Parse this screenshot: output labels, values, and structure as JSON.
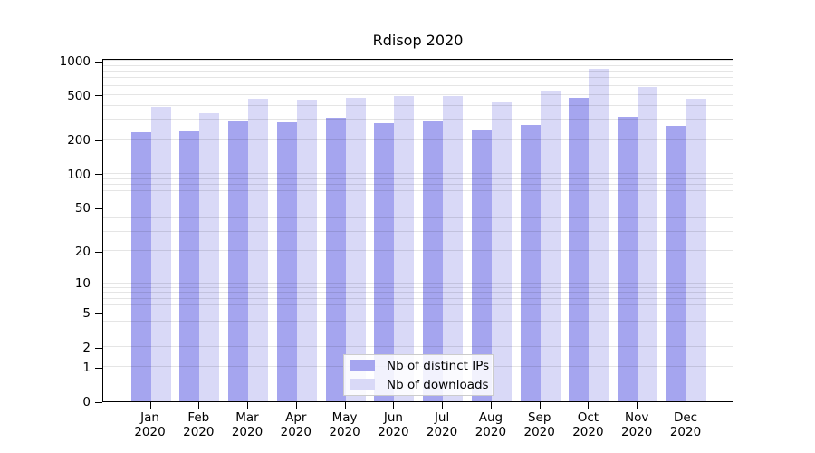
{
  "title": "Rdisop 2020",
  "colors": {
    "distinct_ips": "#a5a5ef",
    "downloads": "#d9d9f7",
    "grid": "rgba(0,0,0,0.10)",
    "axis": "#000000",
    "legend_border": "#cccccc",
    "legend_bg": "rgba(255,255,255,0.85)"
  },
  "y_axis": {
    "ticks": [
      0,
      1,
      2,
      5,
      10,
      20,
      50,
      100,
      200,
      500,
      1000
    ]
  },
  "x_axis": {
    "months": [
      "Jan",
      "Feb",
      "Mar",
      "Apr",
      "May",
      "Jun",
      "Jul",
      "Aug",
      "Sep",
      "Oct",
      "Nov",
      "Dec"
    ],
    "year": "2020"
  },
  "legend": {
    "items": [
      {
        "label": "Nb of distinct IPs",
        "color_key": "distinct_ips"
      },
      {
        "label": "Nb of downloads",
        "color_key": "downloads"
      }
    ]
  },
  "chart_data": {
    "type": "bar",
    "title": "Rdisop 2020",
    "categories": [
      "Jan 2020",
      "Feb 2020",
      "Mar 2020",
      "Apr 2020",
      "May 2020",
      "Jun 2020",
      "Jul 2020",
      "Aug 2020",
      "Sep 2020",
      "Oct 2020",
      "Nov 2020",
      "Dec 2020"
    ],
    "series": [
      {
        "name": "Nb of distinct IPs",
        "color_key": "distinct_ips",
        "values": [
          232,
          240,
          292,
          287,
          314,
          282,
          292,
          246,
          269,
          468,
          318,
          266
        ]
      },
      {
        "name": "Nb of downloads",
        "color_key": "downloads",
        "values": [
          392,
          344,
          459,
          450,
          471,
          485,
          491,
          427,
          546,
          843,
          584,
          463
        ]
      }
    ],
    "xlabel": "",
    "ylabel": "",
    "yscale": "log10(1+y)",
    "ylim": [
      0,
      1000
    ],
    "yticks": [
      0,
      1,
      2,
      5,
      10,
      20,
      50,
      100,
      200,
      500,
      1000
    ],
    "grid": true,
    "legend_position": "bottom-center"
  }
}
